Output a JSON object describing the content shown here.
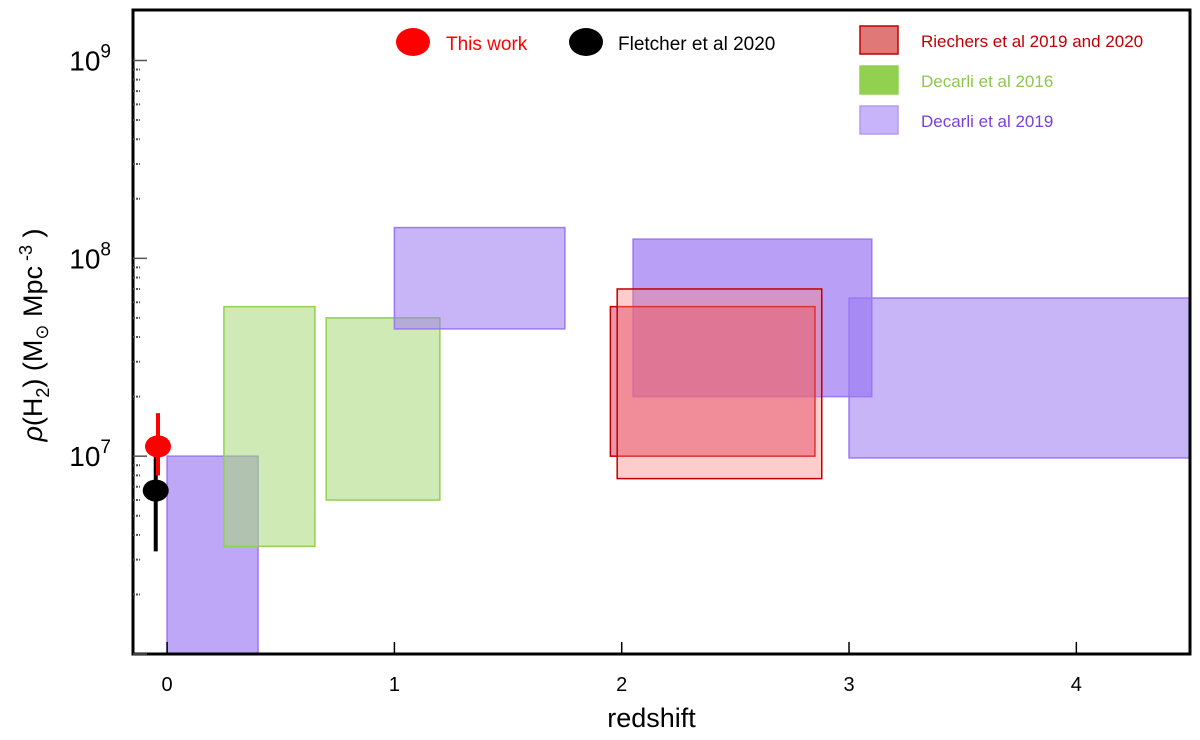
{
  "chart_data": {
    "type": "scatter",
    "xlabel": "redshift",
    "ylabel_parts": [
      "ρ",
      "(H",
      "2",
      ") (M",
      "⊙",
      " Mpc",
      " -3",
      " )"
    ],
    "xlim": [
      -0.15,
      4.5
    ],
    "ylim": [
      1000000,
      1800000000
    ],
    "y_scale": "log",
    "x_ticks": [
      {
        "value": 0,
        "label": "0"
      },
      {
        "value": 1,
        "label": "1"
      },
      {
        "value": 2,
        "label": "2"
      },
      {
        "value": 3,
        "label": "3"
      },
      {
        "value": 4,
        "label": "4"
      }
    ],
    "y_ticks": [
      {
        "value": 10000000,
        "base": "10",
        "exp": "7"
      },
      {
        "value": 100000000,
        "base": "10",
        "exp": "8"
      },
      {
        "value": 1000000000,
        "base": "10",
        "exp": "9"
      }
    ],
    "grid": false,
    "legend": {
      "points": [
        {
          "label": "This work",
          "color": "#ff0000"
        },
        {
          "label": "Fletcher et al 2020",
          "color": "#000000"
        }
      ],
      "boxes": [
        {
          "label": "Riechers et al 2019 and 2020",
          "fill": "#e07878",
          "stroke": "#c00000",
          "text_color": "#c00000"
        },
        {
          "label": "Decarli et al 2016",
          "fill": "#92d050",
          "stroke": "#92d050",
          "text_color": "#8cc84b"
        },
        {
          "label": "Decarli et al 2019",
          "fill": "#c8b4f8",
          "stroke": "#b49cf0",
          "text_color": "#7a3fe0"
        }
      ]
    },
    "boxes": [
      {
        "series": "Decarli et al 2019",
        "x0": 0.0,
        "x1": 0.4,
        "y0": 1000000,
        "y1": 10000000,
        "fill": "#9b78f2",
        "opacity": 0.65,
        "stroke": "#9b78f2"
      },
      {
        "series": "Decarli et al 2016",
        "x0": 0.25,
        "x1": 0.65,
        "y0": 3500000,
        "y1": 57000000,
        "fill": "#a8d878",
        "opacity": 0.55,
        "stroke": "#92d050"
      },
      {
        "series": "Decarli et al 2016",
        "x0": 0.7,
        "x1": 1.2,
        "y0": 6000000,
        "y1": 50000000,
        "fill": "#a8d878",
        "opacity": 0.55,
        "stroke": "#92d050"
      },
      {
        "series": "Decarli et al 2019",
        "x0": 1.0,
        "x1": 1.75,
        "y0": 44000000,
        "y1": 143000000,
        "fill": "#9b78f2",
        "opacity": 0.55,
        "stroke": "#9b78f2"
      },
      {
        "series": "Decarli et al 2019",
        "x0": 2.05,
        "x1": 3.1,
        "y0": 20000000,
        "y1": 125000000,
        "fill": "#9b78f2",
        "opacity": 0.7,
        "stroke": "#9b78f2"
      },
      {
        "series": "Decarli et al 2019",
        "x0": 3.0,
        "x1": 4.5,
        "y0": 9800000,
        "y1": 63000000,
        "fill": "#9b78f2",
        "opacity": 0.55,
        "stroke": "#9b78f2"
      },
      {
        "series": "Riechers et al 2019 and 2020",
        "x0": 1.95,
        "x1": 2.85,
        "y0": 10000000,
        "y1": 57000000,
        "fill": "#d85070",
        "opacity": 0.6,
        "stroke": "#c00000"
      },
      {
        "series": "Riechers et al 2019 and 2020",
        "x0": 1.98,
        "x1": 2.88,
        "y0": 7700000,
        "y1": 70000000,
        "fill": "#ff8080",
        "opacity": 0.4,
        "stroke": "#c00000"
      }
    ],
    "points": [
      {
        "series": "Fletcher et al 2020",
        "x": -0.05,
        "y": 6700000,
        "yerr_low": 3300000,
        "yerr_high": 10000000,
        "color": "#000000"
      },
      {
        "series": "This work",
        "x": -0.04,
        "y": 11200000,
        "yerr_low": 8000000,
        "yerr_high": 16500000,
        "color": "#ff0000"
      }
    ]
  }
}
